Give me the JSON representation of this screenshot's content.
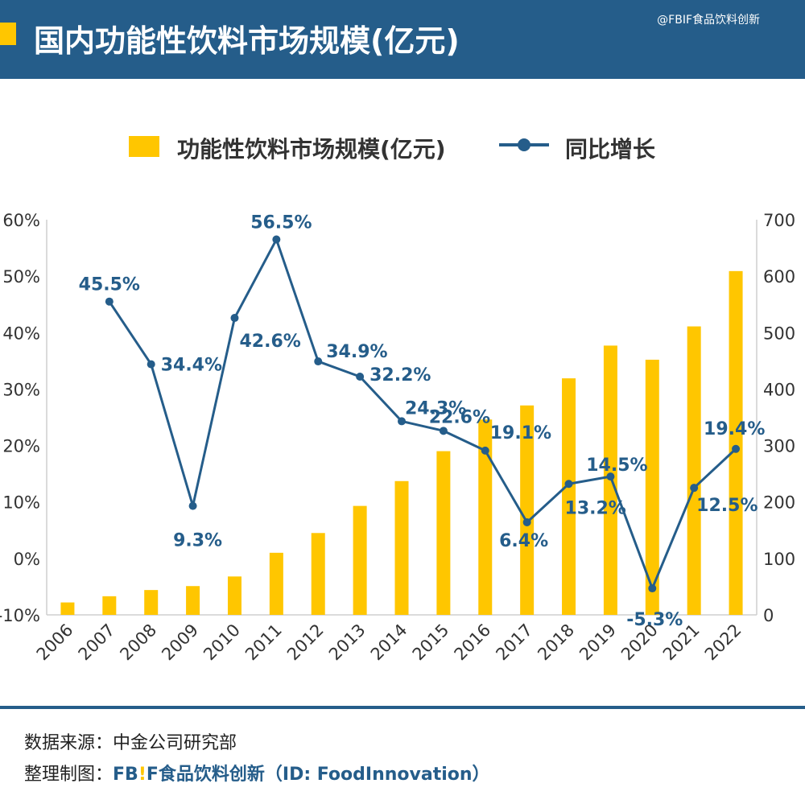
{
  "header": {
    "title": "国内功能性饮料市场规模(亿元)",
    "watermark": "@FBIF食品饮料创新"
  },
  "legend": {
    "bar_label": "功能性饮料市场规模(亿元)",
    "line_label": "同比增长"
  },
  "chart_data": {
    "type": "bar+line",
    "categories": [
      "2006",
      "2007",
      "2008",
      "2009",
      "2010",
      "2011",
      "2012",
      "2013",
      "2014",
      "2015",
      "2016",
      "2017",
      "2018",
      "2019",
      "2020",
      "2021",
      "2022"
    ],
    "series": [
      {
        "name": "功能性饮料市场规模(亿元)",
        "type": "bar",
        "axis": "right",
        "color": "#ffc600",
        "values": [
          22,
          33,
          44,
          51,
          68,
          110,
          145,
          193,
          237,
          290,
          346,
          371,
          419,
          477,
          452,
          511,
          609
        ]
      },
      {
        "name": "同比增长",
        "type": "line",
        "axis": "left",
        "color": "#255d8a",
        "values": [
          null,
          45.5,
          34.4,
          9.3,
          42.6,
          56.5,
          34.9,
          32.2,
          24.3,
          22.6,
          19.1,
          6.4,
          13.2,
          14.5,
          -5.3,
          12.5,
          19.4
        ],
        "labels": [
          null,
          "45.5%",
          "34.4%",
          "9.3%",
          "42.6%",
          "56.5%",
          "34.9%",
          "32.2%",
          "24.3%",
          "22.6%",
          "19.1%",
          "6.4%",
          "13.2%",
          "14.5%",
          "-5.3%",
          "12.5%",
          "19.4%"
        ]
      }
    ],
    "y_left": {
      "min": -10,
      "max": 60,
      "step": 10,
      "tick_labels": [
        "-10%",
        "0%",
        "10%",
        "20%",
        "30%",
        "40%",
        "50%",
        "60%"
      ]
    },
    "y_right": {
      "min": 0,
      "max": 700,
      "step": 100,
      "tick_labels": [
        "0",
        "100",
        "200",
        "300",
        "400",
        "500",
        "600",
        "700"
      ]
    },
    "grid": false,
    "legend_position": "top"
  },
  "footer": {
    "source": "数据来源：中金公司研究部",
    "credit_prefix": "整理制图：",
    "credit_logo_a": "FB",
    "credit_logo_bang": "!",
    "credit_logo_b": "F",
    "credit_rest": "食品饮料创新（ID: FoodInnovation）"
  }
}
